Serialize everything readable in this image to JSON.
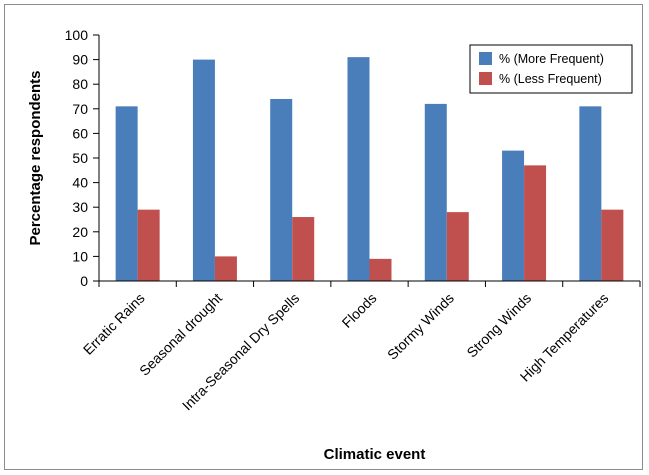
{
  "chart_data": {
    "type": "bar",
    "title": "",
    "xlabel": "Climatic event",
    "ylabel": "Percentage respondents",
    "ylim": [
      0,
      100
    ],
    "yticks": [
      0,
      10,
      20,
      30,
      40,
      50,
      60,
      70,
      80,
      90,
      100
    ],
    "grid": false,
    "legend_position": "top-right",
    "categories": [
      "Erratic Rains",
      "Seasonal drought",
      "Intra-Seasonal Dry Spells",
      "Floods",
      "Stormy Winds",
      "Strong Winds",
      "High Temperatures"
    ],
    "series": [
      {
        "name": "% (More Frequent)",
        "color": "#4a7ebb",
        "values": [
          71,
          90,
          74,
          91,
          72,
          53,
          71
        ]
      },
      {
        "name": "% (Less Frequent)",
        "color": "#c0504d",
        "values": [
          29,
          10,
          26,
          9,
          28,
          47,
          29
        ]
      }
    ]
  }
}
